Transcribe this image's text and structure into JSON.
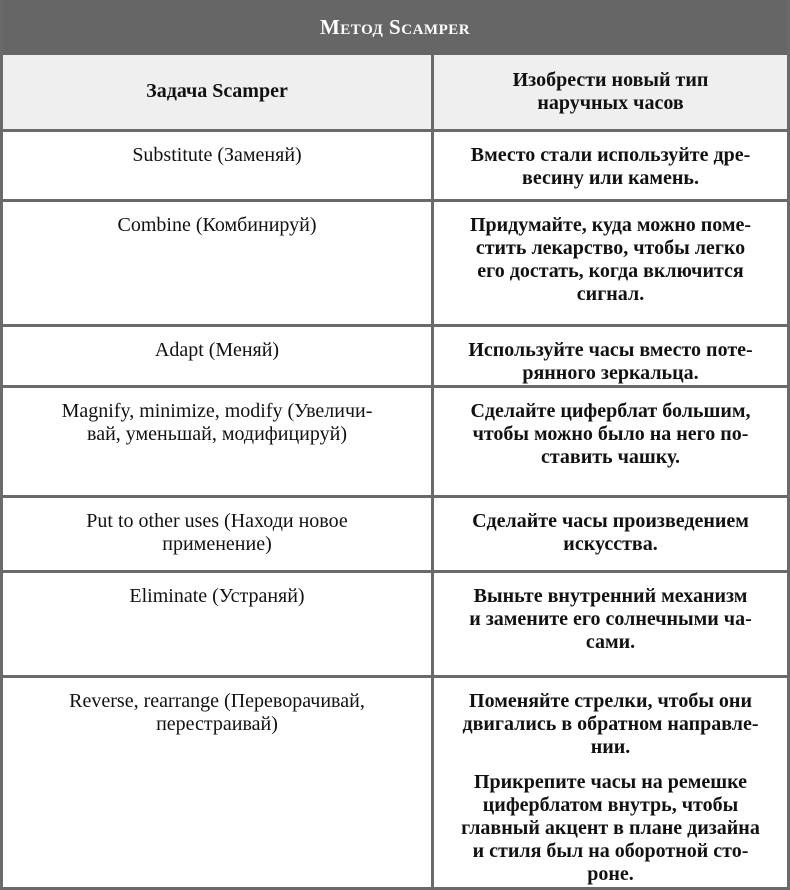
{
  "title": "Метод Scamper",
  "header": {
    "col1": "Задача Scamper",
    "col2": "Изобрести новый тип\nнаручных часов"
  },
  "rows": [
    {
      "task": "Substitute (Заменяй)",
      "idea": "Вместо стали используйте дре-\nвесину или камень."
    },
    {
      "task": "Combine (Комбинируй)",
      "idea": "Придумайте, куда можно поме-\nстить лекарство, чтобы легко\nего достать, когда включится\nсигнал."
    },
    {
      "task": "Adapt (Меняй)",
      "idea": "Используйте часы вместо поте-\nрянного зеркальца."
    },
    {
      "task": "Magnify, minimize, modify (Увеличи-\nвай, уменьшай, модифицируй)",
      "idea": "Сделайте циферблат большим,\nчтобы можно было на него по-\nставить чашку."
    },
    {
      "task": "Put to other uses (Находи новое\nприменение)",
      "idea": "Сделайте часы произведением\nискусства."
    },
    {
      "task": "Eliminate (Устраняй)",
      "idea": "Выньте внутренний механизм\nи замените его солнечными ча-\nсами."
    },
    {
      "task": "Reverse, rearrange (Переворачивай,\nперестраивай)",
      "idea": "Поменяйте стрелки, чтобы они\nдвигались в обратном направле-\nнии.",
      "idea2": "Прикрепите часы на ремешке\nциферблатом внутрь, чтобы\nглавный акцент в плане дизайна\nи стиля был на оборотной сто-\nроне."
    }
  ]
}
